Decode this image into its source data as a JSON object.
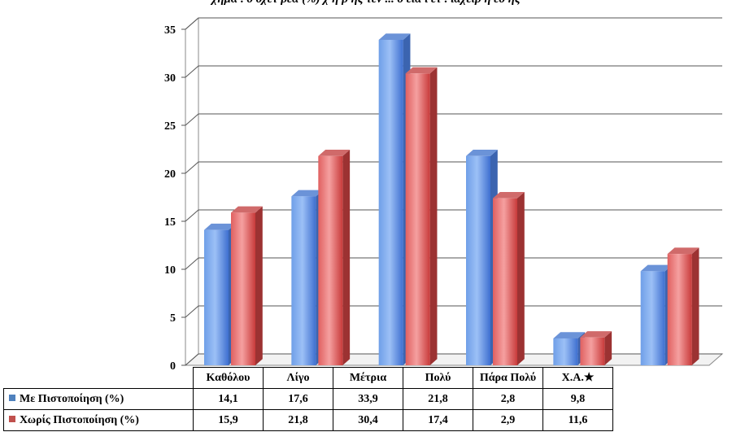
{
  "chart_data": {
    "type": "bar",
    "title": "χήμα . ο οχετ ρέα (%) χ ή ρ ής τεν ... ο εια ι ετ . ιαχειρ ή εο ής",
    "categories": [
      "Καθόλου",
      "Λίγο",
      "Μέτρια",
      "Πολύ",
      "Πάρα Πολύ",
      "Χ.Α.★"
    ],
    "series": [
      {
        "name": "Με Πιστοποίηση (%)",
        "color": "#4f81bd",
        "values": [
          14.1,
          17.6,
          33.9,
          21.8,
          2.8,
          9.8
        ],
        "labels": [
          "14,1",
          "17,6",
          "33,9",
          "21,8",
          "2,8",
          "9,8"
        ]
      },
      {
        "name": "Χωρίς Πιστοποίηση (%)",
        "color": "#c0504d",
        "values": [
          15.9,
          21.8,
          30.4,
          17.4,
          2.9,
          11.6
        ],
        "labels": [
          "15,9",
          "21,8",
          "30,4",
          "17,4",
          "2,9",
          "11,6"
        ]
      }
    ],
    "yticks": [
      "0",
      "5",
      "10",
      "15",
      "20",
      "25",
      "30",
      "35"
    ],
    "ylim": [
      0,
      35
    ],
    "grid": true,
    "legend": "data-table"
  }
}
